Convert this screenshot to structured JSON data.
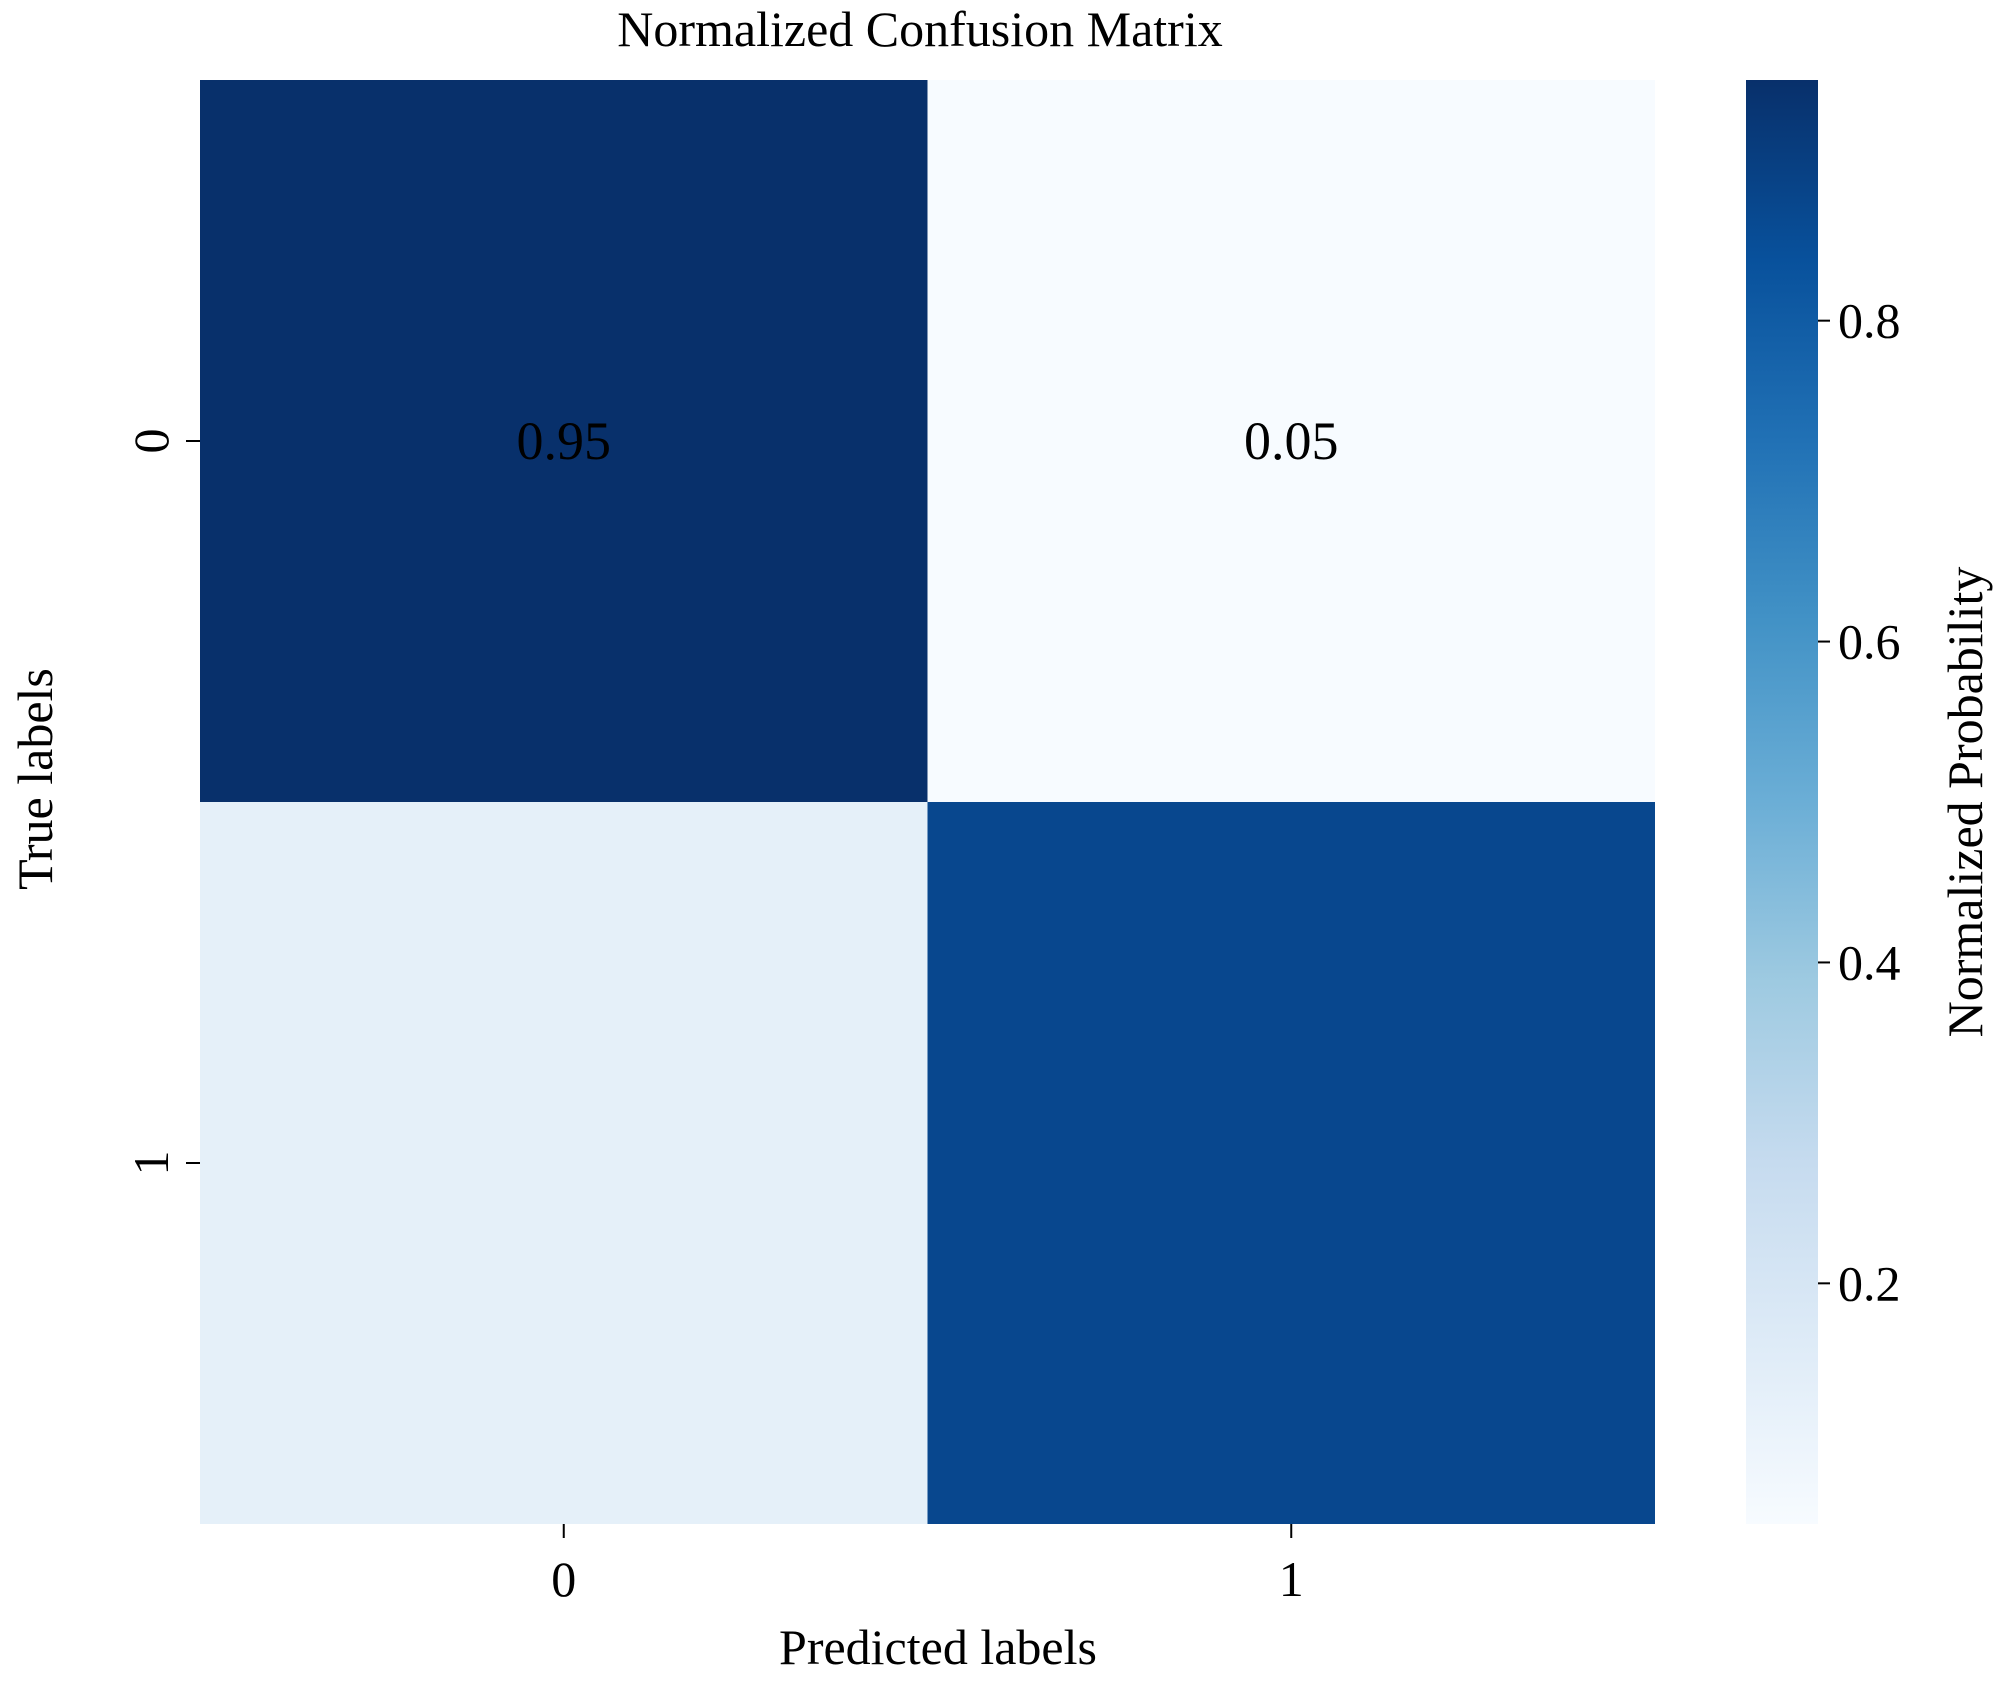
{
  "chart_data": {
    "type": "heatmap",
    "title": "Normalized Confusion Matrix",
    "xlabel": "Predicted labels",
    "ylabel": "True labels",
    "x_categories": [
      "0",
      "1"
    ],
    "y_categories": [
      "0",
      "1"
    ],
    "values": [
      [
        0.95,
        0.05
      ],
      [
        0.13,
        0.87
      ]
    ],
    "annotations": [
      [
        "0.95",
        "0.05"
      ],
      [
        "",
        ""
      ]
    ],
    "colorbar": {
      "label": "Normalized Probability",
      "range": [
        0.05,
        0.95
      ],
      "ticks": [
        0.2,
        0.4,
        0.6,
        0.8
      ],
      "tick_labels": [
        "0.2",
        "0.4",
        "0.6",
        "0.8"
      ],
      "colormap": "Blues"
    },
    "colors": {
      "low": "#f7fbff",
      "high": "#08306b",
      "annotation_on_dark": "#ffffff",
      "annotation_on_light": "#000000"
    },
    "grid": false,
    "legend": "colorbar-right"
  }
}
